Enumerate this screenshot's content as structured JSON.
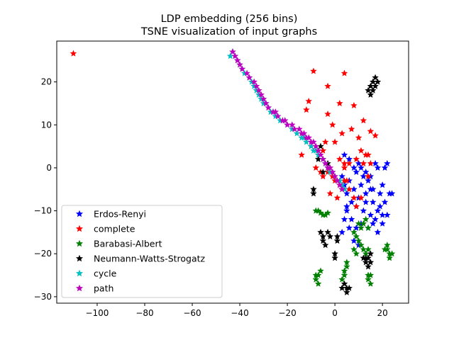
{
  "chart_data": {
    "type": "scatter",
    "title": "LDP embedding (256 bins)",
    "subtitle": "TSNE visualization of input graphs",
    "xlabel": "",
    "ylabel": "",
    "xlim": [
      -117,
      31
    ],
    "ylim": [
      -31.5,
      29.5
    ],
    "xticks": [
      -100,
      -80,
      -60,
      -40,
      -20,
      0,
      20
    ],
    "yticks": [
      -30,
      -20,
      -10,
      0,
      10,
      20
    ],
    "marker": "star",
    "legend": "lower-left",
    "series": [
      {
        "name": "Erdos-Renyi",
        "color": "#0000ff",
        "points": [
          [
            3,
            -2
          ],
          [
            4,
            -4
          ],
          [
            5,
            -6
          ],
          [
            6,
            -3
          ],
          [
            7,
            -8
          ],
          [
            8,
            -5
          ],
          [
            9,
            -9
          ],
          [
            10,
            -7
          ],
          [
            11,
            -4
          ],
          [
            12,
            -10
          ],
          [
            13,
            -6
          ],
          [
            14,
            -3
          ],
          [
            15,
            -11
          ],
          [
            16,
            -8
          ],
          [
            17,
            -12
          ],
          [
            19,
            -9
          ],
          [
            20,
            -13
          ],
          [
            7,
            -12
          ],
          [
            9,
            -14
          ],
          [
            11,
            -13
          ],
          [
            14,
            -14
          ],
          [
            16,
            -13
          ],
          [
            5,
            -9
          ],
          [
            6,
            -14
          ],
          [
            8,
            -17
          ],
          [
            10,
            -18
          ],
          [
            4,
            -12
          ],
          [
            3,
            -15
          ],
          [
            19,
            -6
          ],
          [
            18,
            -10
          ],
          [
            21,
            -8
          ],
          [
            22,
            -11
          ],
          [
            13,
            -1
          ],
          [
            15,
            -2
          ],
          [
            12,
            -2
          ],
          [
            9,
            -1
          ],
          [
            8,
            0
          ],
          [
            11,
            0
          ],
          [
            15,
            -5
          ],
          [
            20,
            -4
          ],
          [
            23,
            -6
          ],
          [
            24,
            -6
          ],
          [
            21,
            0
          ],
          [
            22,
            1
          ],
          [
            17,
            1
          ],
          [
            18,
            0
          ],
          [
            16,
            -5
          ],
          [
            13,
            -8
          ],
          [
            6,
            2
          ],
          [
            10,
            1
          ],
          [
            4,
            3
          ],
          [
            18,
            -15
          ],
          [
            20,
            -11
          ],
          [
            5,
            -10
          ]
        ]
      },
      {
        "name": "complete",
        "color": "#ff0000",
        "points": [
          [
            -110,
            26.6
          ],
          [
            -9,
            22.5
          ],
          [
            4,
            22
          ],
          [
            -3,
            19
          ],
          [
            -11,
            15.5
          ],
          [
            -12,
            13.5
          ],
          [
            -3,
            12.5
          ],
          [
            2,
            15
          ],
          [
            8,
            14.5
          ],
          [
            12,
            11
          ],
          [
            15,
            8.5
          ],
          [
            17,
            7.5
          ],
          [
            -1,
            10
          ],
          [
            3,
            8
          ],
          [
            7,
            9
          ],
          [
            10,
            7
          ],
          [
            11,
            4
          ],
          [
            14,
            3
          ],
          [
            9,
            2
          ],
          [
            6,
            1
          ],
          [
            4,
            0
          ],
          [
            2,
            2
          ],
          [
            -5,
            4
          ],
          [
            -3,
            -1
          ],
          [
            -1,
            -2
          ],
          [
            2,
            -4
          ],
          [
            1,
            -7
          ],
          [
            4,
            -3
          ],
          [
            6,
            -5
          ],
          [
            8,
            -7
          ],
          [
            -8,
            0
          ],
          [
            -6,
            -1
          ],
          [
            -5,
            -2
          ],
          [
            -2,
            -6
          ],
          [
            0,
            -3
          ],
          [
            4,
            1
          ],
          [
            12,
            1
          ],
          [
            13,
            3
          ],
          [
            15,
            1
          ],
          [
            9,
            -9
          ],
          [
            11,
            -7
          ],
          [
            5,
            -3
          ],
          [
            14,
            -2
          ],
          [
            -10,
            5
          ],
          [
            -14,
            3
          ],
          [
            -4,
            6
          ],
          [
            0,
            6
          ],
          [
            3,
            -5
          ]
        ]
      },
      {
        "name": "Barabasi-Albert",
        "color": "#008000",
        "points": [
          [
            -8,
            -10
          ],
          [
            -7,
            -10
          ],
          [
            -6,
            -10.5
          ],
          [
            -5,
            -11
          ],
          [
            -4,
            -11
          ],
          [
            -3,
            -10.5
          ],
          [
            -8,
            -26
          ],
          [
            -8,
            -25
          ],
          [
            -7,
            -25
          ],
          [
            -7,
            -27
          ],
          [
            -6,
            -24
          ],
          [
            10,
            -13
          ],
          [
            11,
            -14
          ],
          [
            12,
            -13
          ],
          [
            13,
            -12
          ],
          [
            14,
            -14
          ],
          [
            8,
            -15
          ],
          [
            9,
            -16
          ],
          [
            10,
            -17
          ],
          [
            11,
            -18
          ],
          [
            12,
            -19
          ],
          [
            13,
            -20
          ],
          [
            14,
            -19
          ],
          [
            22,
            -19
          ],
          [
            23,
            -20
          ],
          [
            24,
            -20
          ],
          [
            22,
            -18
          ],
          [
            21,
            -19
          ],
          [
            23,
            -21
          ],
          [
            4,
            -24
          ],
          [
            4,
            -25
          ],
          [
            5,
            -23
          ],
          [
            5,
            -22
          ],
          [
            3,
            -26
          ],
          [
            14,
            -26
          ],
          [
            15,
            -25
          ],
          [
            15,
            -27
          ],
          [
            14,
            -25
          ],
          [
            8,
            -19
          ],
          [
            9,
            -20
          ]
        ]
      },
      {
        "name": "Neumann-Watts-Strogatz",
        "color": "#000000",
        "points": [
          [
            14,
            18
          ],
          [
            15,
            19
          ],
          [
            16,
            20
          ],
          [
            17,
            21
          ],
          [
            18,
            20
          ],
          [
            15,
            17
          ],
          [
            16,
            18
          ],
          [
            17,
            19
          ],
          [
            -6,
            5
          ],
          [
            -7,
            2
          ],
          [
            -5,
            -1
          ],
          [
            -3,
            1
          ],
          [
            -9,
            -5
          ],
          [
            -9,
            -6
          ],
          [
            -6,
            -15
          ],
          [
            -5,
            -16
          ],
          [
            -5,
            -17
          ],
          [
            -4,
            -18
          ],
          [
            -3,
            -15
          ],
          [
            -2,
            -16
          ],
          [
            1,
            -16
          ],
          [
            1,
            -17
          ],
          [
            0,
            -20
          ],
          [
            0,
            -21
          ],
          [
            4,
            -27
          ],
          [
            5,
            -28
          ],
          [
            5,
            -29
          ],
          [
            6,
            -28
          ],
          [
            3,
            -28
          ],
          [
            14,
            -21
          ],
          [
            15,
            -22
          ],
          [
            14,
            -23
          ],
          [
            13,
            -21
          ],
          [
            15,
            -20
          ],
          [
            13,
            -22
          ],
          [
            12,
            -21
          ]
        ]
      },
      {
        "name": "cycle",
        "color": "#00bfbf",
        "points": [
          [
            -44,
            26
          ],
          [
            -43,
            27
          ],
          [
            -42,
            26
          ],
          [
            -41,
            25
          ],
          [
            -40,
            24
          ],
          [
            -39,
            23
          ],
          [
            -38,
            22
          ],
          [
            -36,
            21
          ],
          [
            -35,
            20
          ],
          [
            -34,
            19
          ],
          [
            -33,
            18
          ],
          [
            -32,
            17
          ],
          [
            -31,
            16
          ],
          [
            -30,
            15
          ],
          [
            -29,
            15
          ],
          [
            -28,
            14
          ],
          [
            -27,
            13
          ],
          [
            -26,
            13
          ],
          [
            -25,
            12
          ],
          [
            -24,
            12
          ],
          [
            -23,
            11
          ],
          [
            -21,
            11
          ],
          [
            -20,
            10
          ],
          [
            -18,
            9
          ],
          [
            -16,
            8
          ],
          [
            -14,
            7
          ],
          [
            -13,
            7
          ],
          [
            -12,
            6
          ],
          [
            -10,
            5
          ],
          [
            -9,
            4
          ],
          [
            -8,
            4
          ],
          [
            -7,
            3
          ],
          [
            -5,
            2
          ],
          [
            -4,
            1
          ],
          [
            -3,
            0
          ],
          [
            -2,
            -1
          ],
          [
            -1,
            -1
          ],
          [
            0,
            -2
          ],
          [
            1,
            -3
          ],
          [
            2,
            -3
          ],
          [
            3,
            -4
          ],
          [
            4,
            -5
          ]
        ]
      },
      {
        "name": "path",
        "color": "#bf00bf",
        "points": [
          [
            -43,
            27
          ],
          [
            -42,
            26
          ],
          [
            -41,
            25
          ],
          [
            -40,
            24
          ],
          [
            -39,
            23
          ],
          [
            -37,
            22
          ],
          [
            -36,
            21
          ],
          [
            -34,
            20
          ],
          [
            -33,
            19
          ],
          [
            -32,
            18
          ],
          [
            -31,
            17
          ],
          [
            -30,
            16
          ],
          [
            -29,
            15
          ],
          [
            -28,
            14
          ],
          [
            -26,
            13
          ],
          [
            -25,
            13
          ],
          [
            -24,
            12
          ],
          [
            -22,
            11
          ],
          [
            -21,
            11
          ],
          [
            -20,
            10
          ],
          [
            -18,
            10
          ],
          [
            -17,
            9
          ],
          [
            -15,
            9
          ],
          [
            -14,
            8
          ],
          [
            -13,
            8
          ],
          [
            -12,
            7
          ],
          [
            -11,
            7
          ],
          [
            -10,
            6
          ],
          [
            -9,
            6
          ],
          [
            -8,
            5
          ],
          [
            -7,
            4
          ],
          [
            -6,
            3
          ],
          [
            -5,
            2
          ],
          [
            -4,
            1
          ],
          [
            -3,
            0
          ],
          [
            -2,
            0
          ],
          [
            -1,
            -1
          ],
          [
            0,
            -2
          ],
          [
            1,
            -3
          ],
          [
            2,
            -4
          ],
          [
            3,
            -5
          ]
        ]
      }
    ]
  }
}
